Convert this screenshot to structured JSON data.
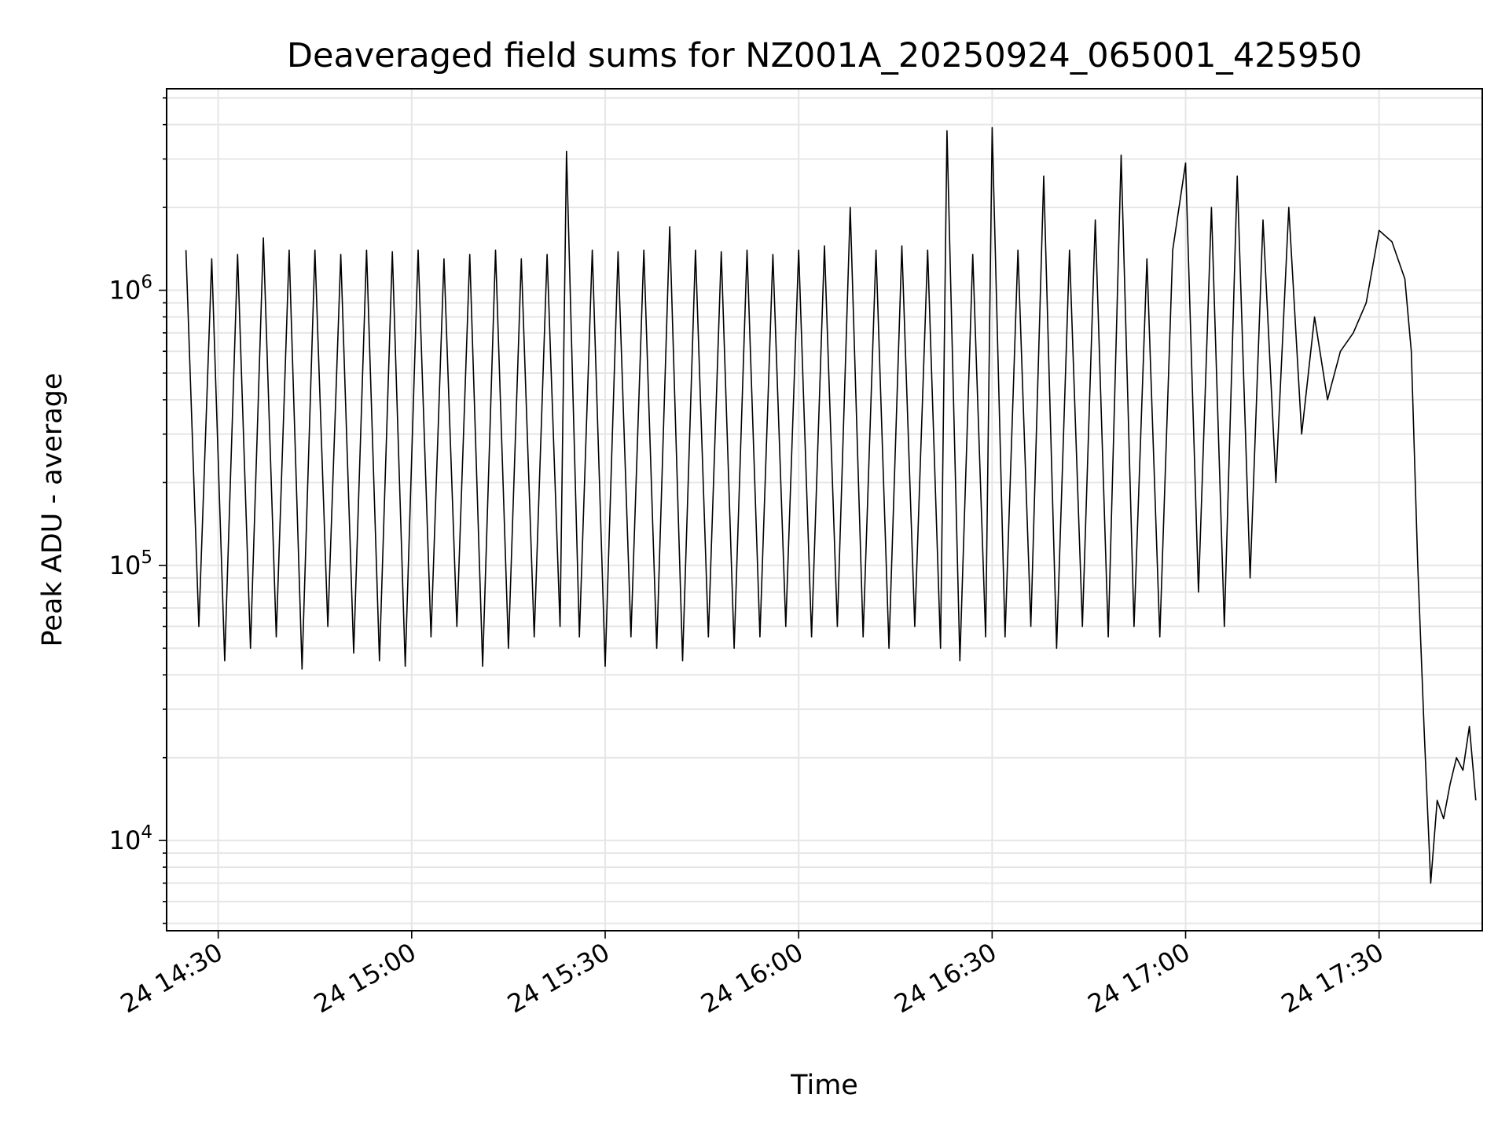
{
  "chart_data": {
    "type": "line",
    "title": "Deaveraged field sums for NZ001A_20250924_065001_425950",
    "xlabel": "Time",
    "ylabel": "Peak ADU - average",
    "yscale": "log",
    "grid": true,
    "line_color": "#000000",
    "grid_color": "#e6e6e6",
    "x_range": [
      "24 14:22",
      "24 17:46"
    ],
    "ylim": [
      4700,
      5400000
    ],
    "x_ticks": [
      {
        "t": "24 14:30",
        "label": "24 14:30"
      },
      {
        "t": "24 15:00",
        "label": "24 15:00"
      },
      {
        "t": "24 15:30",
        "label": "24 15:30"
      },
      {
        "t": "24 16:00",
        "label": "24 16:00"
      },
      {
        "t": "24 16:30",
        "label": "24 16:30"
      },
      {
        "t": "24 17:00",
        "label": "24 17:00"
      },
      {
        "t": "24 17:30",
        "label": "24 17:30"
      }
    ],
    "y_ticks": [
      {
        "value": 10000,
        "base": "10",
        "exp": "4"
      },
      {
        "value": 100000,
        "base": "10",
        "exp": "5"
      },
      {
        "value": 1000000,
        "base": "10",
        "exp": "6"
      }
    ],
    "series": [
      {
        "x": [
          "24 14:25",
          "24 14:27",
          "24 14:29",
          "24 14:31",
          "24 14:33",
          "24 14:35",
          "24 14:37",
          "24 14:39",
          "24 14:41",
          "24 14:43",
          "24 14:45",
          "24 14:47",
          "24 14:49",
          "24 14:51",
          "24 14:53",
          "24 14:55",
          "24 14:57",
          "24 14:59",
          "24 15:01",
          "24 15:03",
          "24 15:05",
          "24 15:07",
          "24 15:09",
          "24 15:11",
          "24 15:13",
          "24 15:15",
          "24 15:17",
          "24 15:19",
          "24 15:21",
          "24 15:23",
          "24 15:24",
          "24 15:26",
          "24 15:28",
          "24 15:30",
          "24 15:32",
          "24 15:34",
          "24 15:36",
          "24 15:38",
          "24 15:40",
          "24 15:42",
          "24 15:44",
          "24 15:46",
          "24 15:48",
          "24 15:50",
          "24 15:52",
          "24 15:54",
          "24 15:56",
          "24 15:58",
          "24 16:00",
          "24 16:02",
          "24 16:04",
          "24 16:06",
          "24 16:08",
          "24 16:10",
          "24 16:12",
          "24 16:14",
          "24 16:16",
          "24 16:18",
          "24 16:20",
          "24 16:22",
          "24 16:23",
          "24 16:25",
          "24 16:27",
          "24 16:29",
          "24 16:30",
          "24 16:32",
          "24 16:34",
          "24 16:36",
          "24 16:38",
          "24 16:40",
          "24 16:42",
          "24 16:44",
          "24 16:46",
          "24 16:48",
          "24 16:50",
          "24 16:52",
          "24 16:54",
          "24 16:56",
          "24 16:58",
          "24 17:00",
          "24 17:02",
          "24 17:04",
          "24 17:06",
          "24 17:08",
          "24 17:10",
          "24 17:12",
          "24 17:14",
          "24 17:16",
          "24 17:18",
          "24 17:20",
          "24 17:22",
          "24 17:24",
          "24 17:26",
          "24 17:28",
          "24 17:30",
          "24 17:32",
          "24 17:34",
          "24 17:35",
          "24 17:36",
          "24 17:37",
          "24 17:38",
          "24 17:39",
          "24 17:40",
          "24 17:41",
          "24 17:42",
          "24 17:43",
          "24 17:44",
          "24 17:45"
        ],
        "y": [
          1400000,
          60000,
          1300000,
          45000,
          1350000,
          50000,
          1550000,
          55000,
          1400000,
          42000,
          1400000,
          60000,
          1350000,
          48000,
          1400000,
          45000,
          1380000,
          43000,
          1400000,
          55000,
          1300000,
          60000,
          1350000,
          43000,
          1400000,
          50000,
          1300000,
          55000,
          1350000,
          60000,
          3200000,
          55000,
          1400000,
          43000,
          1380000,
          55000,
          1400000,
          50000,
          1700000,
          45000,
          1400000,
          55000,
          1380000,
          50000,
          1400000,
          55000,
          1350000,
          60000,
          1400000,
          55000,
          1450000,
          60000,
          2000000,
          55000,
          1400000,
          50000,
          1450000,
          60000,
          1400000,
          50000,
          3800000,
          45000,
          1350000,
          55000,
          3900000,
          55000,
          1400000,
          60000,
          2600000,
          50000,
          1400000,
          60000,
          1800000,
          55000,
          3100000,
          60000,
          1300000,
          55000,
          1400000,
          2900000,
          80000,
          2000000,
          60000,
          2600000,
          90000,
          1800000,
          200000,
          2000000,
          300000,
          800000,
          400000,
          600000,
          700000,
          900000,
          1650000,
          1500000,
          1100000,
          600000,
          100000,
          25000,
          7000,
          14000,
          12000,
          16000,
          20000,
          18000,
          26000,
          14000
        ]
      }
    ]
  }
}
